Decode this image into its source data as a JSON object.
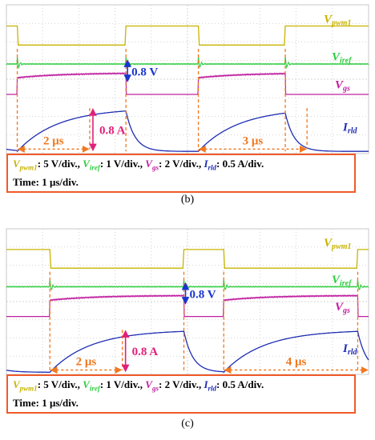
{
  "panels": [
    {
      "id": "b",
      "caption": "(b)",
      "labels": {
        "vpwm_base": "V",
        "vpwm_sub": "pwm1",
        "viref_base": "V",
        "viref_sub": "iref",
        "vgs_base": "V",
        "vgs_sub": "gs",
        "irld_base": "I",
        "irld_sub": "rld",
        "vref_step": "0.8 V",
        "current_step": "0.8  A",
        "dur1": "2 μs",
        "dur2": "3 μs"
      },
      "info": {
        "vpwm": "V",
        "vpwm_sub": "pwm1",
        "vpwm_scale": ": 5 V/div., ",
        "viref": "V",
        "viref_sub": "iref",
        "viref_scale": ": 1 V/div., ",
        "vgs": "V",
        "vgs_sub": "gs",
        "vgs_scale": ": 2 V/div., ",
        "irld": "I",
        "irld_sub": "rld",
        "irld_scale": ": 0.5 A/div.",
        "time": "Time: 1 μs/div."
      }
    },
    {
      "id": "c",
      "caption": "(c)",
      "labels": {
        "vpwm_base": "V",
        "vpwm_sub": "pwm1",
        "viref_base": "V",
        "viref_sub": "iref",
        "vgs_base": "V",
        "vgs_sub": "gs",
        "irld_base": "I",
        "irld_sub": "rld",
        "vref_step": "0.8 V",
        "current_step": "0.8  A",
        "dur1": "2 μs",
        "dur2": "4 μs"
      },
      "info": {
        "vpwm": "V",
        "vpwm_sub": "pwm1",
        "vpwm_scale": ": 5 V/div., ",
        "viref": "V",
        "viref_sub": "iref",
        "viref_scale": ": 1 V/div., ",
        "vgs": "V",
        "vgs_sub": "gs",
        "vgs_scale": ": 2 V/div., ",
        "irld": "I",
        "irld_sub": "rld",
        "irld_scale": ": 0.5 A/div.",
        "time": "Time: 1 μs/div."
      }
    }
  ],
  "chart_data": [
    {
      "type": "line",
      "panel": "b",
      "time_div_us": 1,
      "series": [
        {
          "name": "Vpwm1",
          "scale": "5 V/div.",
          "color": "#c8b400",
          "high_intervals_us": [
            [
              0,
              0.3
            ],
            [
              3.3,
              5.3
            ],
            [
              7.7,
              10
            ]
          ]
        },
        {
          "name": "Viref",
          "scale": "1 V/div.",
          "color": "#2ecc40"
        },
        {
          "name": "Vgs",
          "scale": "2 V/div.",
          "color": "#c020a0",
          "on_intervals_us": [
            [
              0.3,
              3.3
            ],
            [
              5.3,
              7.7
            ]
          ]
        },
        {
          "name": "Irld",
          "scale": "0.5 A/div.",
          "color": "#1f2db3",
          "peak_A": 0.8,
          "rise_times_us": [
            2,
            3
          ]
        }
      ],
      "annotations": [
        "0.8 V",
        "0.8 A",
        "2 μs",
        "3 μs"
      ],
      "colors": {
        "pwm": "#c8b400",
        "iref": "#2ecc40",
        "gs": "#c020a0",
        "rld": "#1f2db3",
        "orange": "#f07820",
        "arrow_pink": "#e0207a",
        "arrow_blue": "#1a35d0"
      }
    },
    {
      "type": "line",
      "panel": "c",
      "time_div_us": 1,
      "series": [
        {
          "name": "Vpwm1",
          "scale": "5 V/div.",
          "color": "#c8b400",
          "high_intervals_us": [
            [
              0,
              1.2
            ],
            [
              4.9,
              6.0
            ],
            [
              9.7,
              10
            ]
          ]
        },
        {
          "name": "Viref",
          "scale": "1 V/div.",
          "color": "#2ecc40"
        },
        {
          "name": "Vgs",
          "scale": "2 V/div.",
          "color": "#c020a0",
          "on_intervals_us": [
            [
              1.2,
              4.9
            ],
            [
              6.0,
              9.7
            ]
          ]
        },
        {
          "name": "Irld",
          "scale": "0.5 A/div.",
          "color": "#1f2db3",
          "peak_A": 0.8,
          "rise_times_us": [
            2,
            4
          ]
        }
      ],
      "annotations": [
        "0.8 V",
        "0.8 A",
        "2 μs",
        "4 μs"
      ],
      "colors": {
        "pwm": "#c8b400",
        "iref": "#2ecc40",
        "gs": "#c020a0",
        "rld": "#1f2db3",
        "orange": "#f07820",
        "arrow_pink": "#e0207a",
        "arrow_blue": "#1a35d0"
      }
    }
  ]
}
